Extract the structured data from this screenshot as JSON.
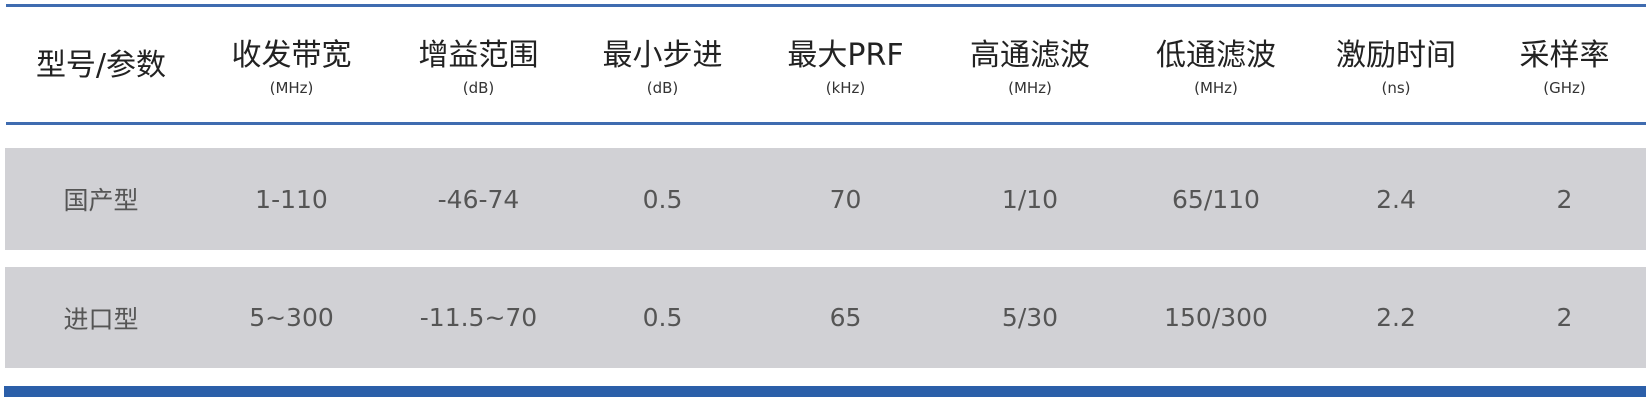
{
  "colors": {
    "accent": "#2b5fa9",
    "row_bg": "#d1d1d5"
  },
  "headers": [
    {
      "title": "型号/参数",
      "unit": ""
    },
    {
      "title": "收发带宽",
      "unit": "(MHz)"
    },
    {
      "title": "增益范围",
      "unit": "(dB)"
    },
    {
      "title": "最小步进",
      "unit": "(dB)"
    },
    {
      "title": "最大PRF",
      "unit": "(kHz)"
    },
    {
      "title": "高通滤波",
      "unit": "(MHz)"
    },
    {
      "title": "低通滤波",
      "unit": "(MHz)"
    },
    {
      "title": "激励时间",
      "unit": "(ns)"
    },
    {
      "title": "采样率",
      "unit": "(GHz)"
    }
  ],
  "rows": [
    [
      "国产型",
      "1-110",
      "-46-74",
      "0.5",
      "70",
      "1/10",
      "65/110",
      "2.4",
      "2"
    ],
    [
      "进口型",
      "5~300",
      "-11.5~70",
      "0.5",
      "65",
      "5/30",
      "150/300",
      "2.2",
      "2"
    ]
  ]
}
